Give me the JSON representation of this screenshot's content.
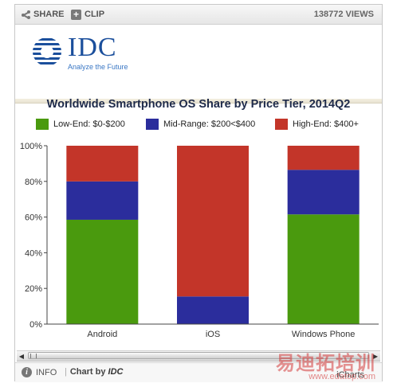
{
  "toolbar": {
    "share_label": "SHARE",
    "clip_label": "CLIP",
    "views_label": "138772 VIEWS"
  },
  "logo": {
    "name": "IDC",
    "tagline": "Analyze the Future",
    "color": "#1b4f9c"
  },
  "footer": {
    "info_label": "INFO",
    "chart_by_label": "Chart by",
    "chart_by_brand": "IDC",
    "brand_mark": "iCharts"
  },
  "watermark": {
    "chinese": "易迪拓培训",
    "url": "www.edatop.com"
  },
  "chart_data": {
    "type": "bar",
    "stacked": true,
    "title": "Worldwide Smartphone OS Share by Price Tier, 2014Q2",
    "categories": [
      "Android",
      "iOS",
      "Windows Phone"
    ],
    "series": [
      {
        "name": "Low-End: $0-$200",
        "color": "#4a9a0e",
        "values": [
          58.5,
          0,
          61.5
        ]
      },
      {
        "name": "Mid-Range: $200<$400",
        "color": "#2b2d9c",
        "values": [
          21.5,
          15.5,
          25
        ]
      },
      {
        "name": "High-End: $400+",
        "color": "#c33529",
        "values": [
          20,
          84.5,
          13.5
        ]
      }
    ],
    "y_ticks": [
      "0%",
      "20%",
      "40%",
      "60%",
      "80%",
      "100%"
    ],
    "ylim": [
      0,
      100
    ],
    "grid": false,
    "legend_position": "top"
  }
}
